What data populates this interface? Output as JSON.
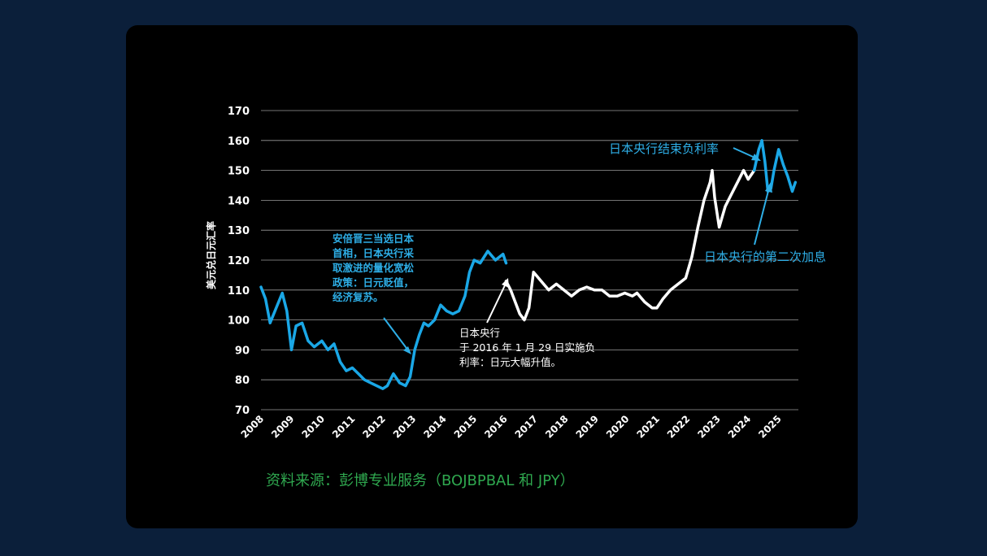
{
  "colors": {
    "page_background": "#0b1f3a",
    "card_background": "#000000",
    "series_blue": "#1aa7e6",
    "series_white": "#ffffff",
    "annotation_blue": "#2eaee6",
    "source_green": "#2fa84f"
  },
  "chart_data": {
    "type": "line",
    "title": "",
    "xlabel": "",
    "ylabel": "美元兑日元汇率",
    "ylim": [
      70,
      170
    ],
    "yticks": [
      "170",
      "160",
      "150",
      "140",
      "130",
      "120",
      "110",
      "100",
      "90",
      "80",
      "70"
    ],
    "xticks": [
      "2008",
      "2009",
      "2010",
      "2011",
      "2012",
      "2013",
      "2014",
      "2015",
      "2016",
      "2017",
      "2018",
      "2019",
      "2020",
      "2021",
      "2022",
      "2023",
      "2024",
      "2025"
    ],
    "grid": "horizontal",
    "series": [
      {
        "color": "#1aa7e6",
        "x": [
          2008.0,
          2008.15,
          2008.3,
          2008.5,
          2008.7,
          2008.85,
          2009.0,
          2009.15,
          2009.35,
          2009.55,
          2009.75,
          2010.0,
          2010.2,
          2010.4,
          2010.6,
          2010.8,
          2011.0,
          2011.2,
          2011.4,
          2011.6,
          2011.8,
          2012.0,
          2012.15,
          2012.35,
          2012.55,
          2012.75,
          2012.9,
          2013.05,
          2013.2,
          2013.35,
          2013.5,
          2013.7,
          2013.9,
          2014.1,
          2014.3,
          2014.5,
          2014.7,
          2014.85,
          2015.0,
          2015.2,
          2015.45,
          2015.7,
          2015.95,
          2016.05
        ],
        "y": [
          111,
          107,
          99,
          104,
          109,
          103,
          90,
          98,
          99,
          93,
          91,
          93,
          90,
          92,
          86,
          83,
          84,
          82,
          80,
          79,
          78,
          77,
          78,
          82,
          79,
          78,
          81,
          90,
          95,
          99,
          98,
          100,
          105,
          103,
          102,
          103,
          108,
          116,
          120,
          119,
          123,
          120,
          122,
          119
        ]
      },
      {
        "color": "#ffffff",
        "x": [
          2016.05,
          2016.2,
          2016.35,
          2016.5,
          2016.65,
          2016.8,
          2016.95,
          2017.2,
          2017.45,
          2017.7,
          2017.95,
          2018.2,
          2018.45,
          2018.7,
          2018.95,
          2019.2,
          2019.45,
          2019.7,
          2019.95,
          2020.2,
          2020.35,
          2020.6,
          2020.85,
          2021.0,
          2021.2,
          2021.45,
          2021.7,
          2021.95,
          2022.15,
          2022.35,
          2022.55,
          2022.75,
          2022.82,
          2022.9,
          2023.05,
          2023.25,
          2023.45,
          2023.65,
          2023.85,
          2024.0,
          2024.2
        ],
        "y": [
          113,
          110,
          106,
          102,
          100,
          104,
          116,
          113,
          110,
          112,
          110,
          108,
          110,
          111,
          110,
          110,
          108,
          108,
          109,
          108,
          109,
          106,
          104,
          104,
          107,
          110,
          112,
          114,
          121,
          131,
          140,
          146,
          150,
          141,
          131,
          138,
          142,
          146,
          150,
          147,
          150
        ]
      },
      {
        "color": "#1aa7e6",
        "x": [
          2024.2,
          2024.35,
          2024.45,
          2024.55,
          2024.65,
          2024.75,
          2024.85,
          2025.0,
          2025.15,
          2025.3,
          2025.45,
          2025.55
        ],
        "y": [
          150,
          157,
          160,
          153,
          143,
          144,
          150,
          157,
          152,
          148,
          143,
          146
        ]
      }
    ]
  },
  "annotations": {
    "boj_negative_end": "日本央行结束负利率",
    "boj_second_hike": "日本央行的第二次加息",
    "abe": [
      "安倍晋三当选日本",
      "首相，日本央行采",
      "取激进的量化宽松",
      "政策：日元贬值，",
      "经济复苏。"
    ],
    "boj_2016": [
      "日本央行",
      "于 2016 年 1 月 29 日实施负",
      "利率：日元大幅升值。"
    ]
  },
  "source": "资料来源：彭博专业服务（BOJBPBAL 和 JPY）"
}
